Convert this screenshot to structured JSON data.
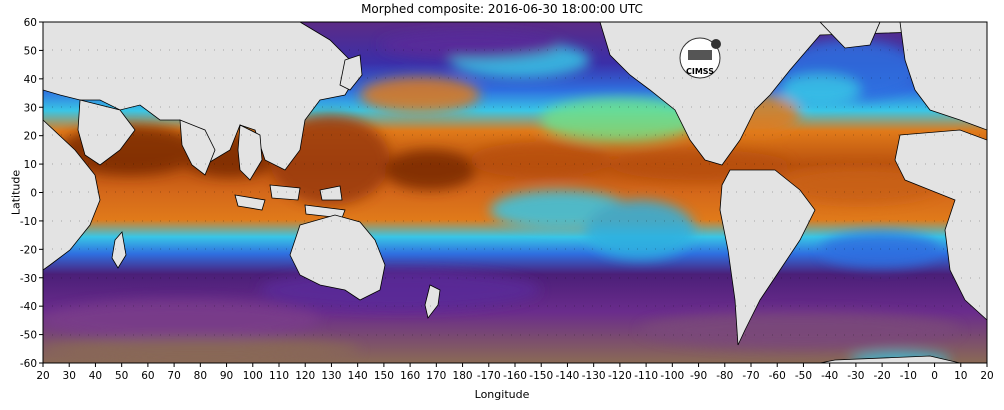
{
  "title": "Morphed composite: 2016-06-30 18:00:00 UTC",
  "xlabel": "Longitude",
  "ylabel": "Latitude",
  "x_ticks": [
    "20",
    "30",
    "40",
    "50",
    "60",
    "70",
    "80",
    "90",
    "100",
    "110",
    "120",
    "130",
    "140",
    "150",
    "160",
    "170",
    "180",
    "-170",
    "-160",
    "-150",
    "-140",
    "-130",
    "-120",
    "-110",
    "-100",
    "-90",
    "-80",
    "-70",
    "-60",
    "-50",
    "-40",
    "-30",
    "-20",
    "-10",
    "0",
    "10",
    "20"
  ],
  "y_ticks": [
    "60",
    "50",
    "40",
    "30",
    "20",
    "10",
    "0",
    "-10",
    "-20",
    "-30",
    "-40",
    "-50",
    "-60"
  ],
  "logo_text": "CIMSS",
  "colors": {
    "land": "#e3e3e3",
    "coast": "#000000",
    "dry_purple": "#6a2c8c",
    "deep_purple": "#4b1f78",
    "blue": "#2f6fe0",
    "cyan": "#39c6e6",
    "green": "#6fe08a",
    "yellow": "#e9e36a",
    "orange": "#e07a1a",
    "dark_orange": "#b8500e",
    "brown": "#7a2a06"
  }
}
